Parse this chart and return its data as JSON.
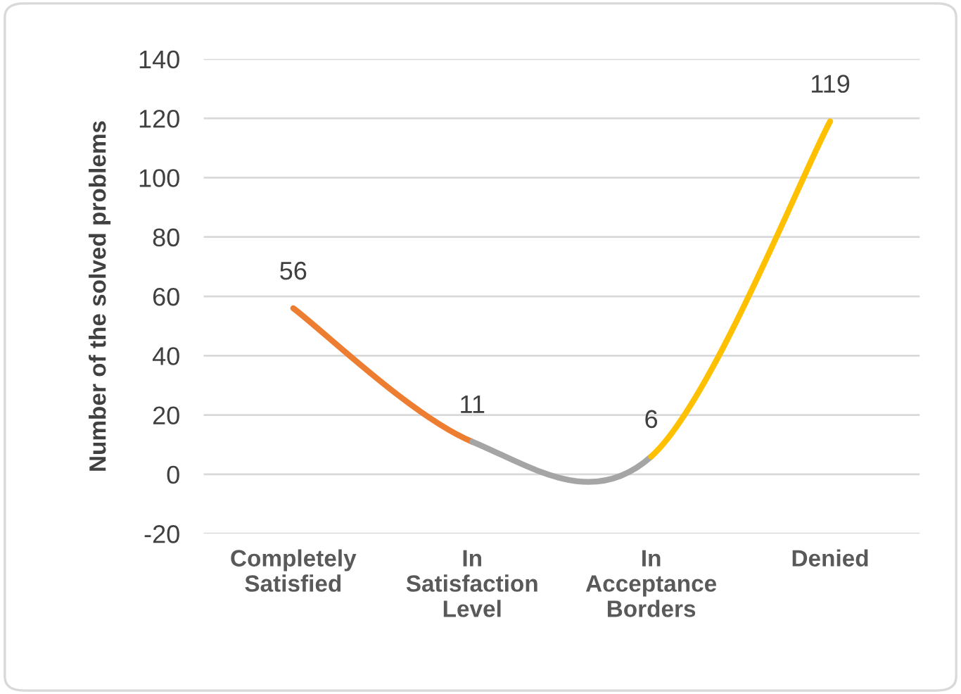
{
  "chart_data": {
    "type": "line",
    "ylabel": "Number of the solved problems",
    "categories": [
      "Completely\nSatisfied",
      "In\nSatisfaction\nLevel",
      "In\nAcceptance\nBorders",
      "Denied"
    ],
    "series": [
      {
        "values": [
          56,
          11,
          null,
          null
        ],
        "color": "#ed7d31",
        "value_labels": [
          "56",
          "11",
          null,
          null
        ]
      },
      {
        "values": [
          null,
          11,
          6,
          null
        ],
        "color": "#a5a5a5",
        "value_labels": [
          null,
          null,
          "6",
          null
        ]
      },
      {
        "values": [
          null,
          null,
          6,
          119
        ],
        "color": "#ffc000",
        "value_labels": [
          null,
          null,
          null,
          "119"
        ]
      }
    ],
    "ylim": [
      -20,
      140
    ],
    "yticks": [
      -20,
      0,
      20,
      40,
      60,
      80,
      100,
      120,
      140
    ],
    "grid": "y",
    "marker": "none",
    "line_style": "solid",
    "legend": false
  }
}
